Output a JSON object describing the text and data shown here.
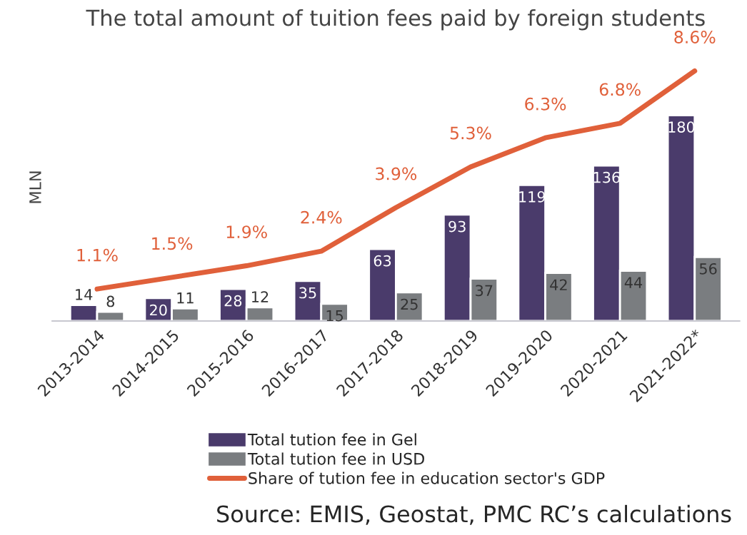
{
  "chart_data": {
    "type": "bar",
    "title": "The total amount of tuition fees paid by foreign students",
    "ylabel": "MLN",
    "categories": [
      "2013-2014",
      "2014-2015",
      "2015-2016",
      "2016-2017",
      "2017-2018",
      "2018-2019",
      "2019-2020",
      "2020-2021",
      "2021-2022*"
    ],
    "series": [
      {
        "name": "Total tution fee in Gel",
        "color": "#4a3b6b",
        "values": [
          14,
          20,
          28,
          35,
          63,
          93,
          119,
          136,
          180
        ]
      },
      {
        "name": "Total tution fee in USD",
        "color": "#7a7d80",
        "values": [
          8,
          11,
          12,
          15,
          25,
          37,
          42,
          44,
          56
        ]
      },
      {
        "name": "Share of tution fee in education sector's GDP",
        "type": "line",
        "axis": "y2",
        "color": "#e0603a",
        "values": [
          1.1,
          1.5,
          1.9,
          2.4,
          3.9,
          5.3,
          6.3,
          6.8,
          8.6
        ],
        "value_labels": [
          "1.1%",
          "1.5%",
          "1.9%",
          "2.4%",
          "3.9%",
          "5.3%",
          "6.3%",
          "6.8%",
          "8.6%"
        ]
      }
    ],
    "data_labels": true,
    "tick_labels": "x",
    "legend": "bottom",
    "grid": false,
    "annotations": [
      "Source: EMIS, Geostat, PMC RC’s calculations"
    ]
  }
}
